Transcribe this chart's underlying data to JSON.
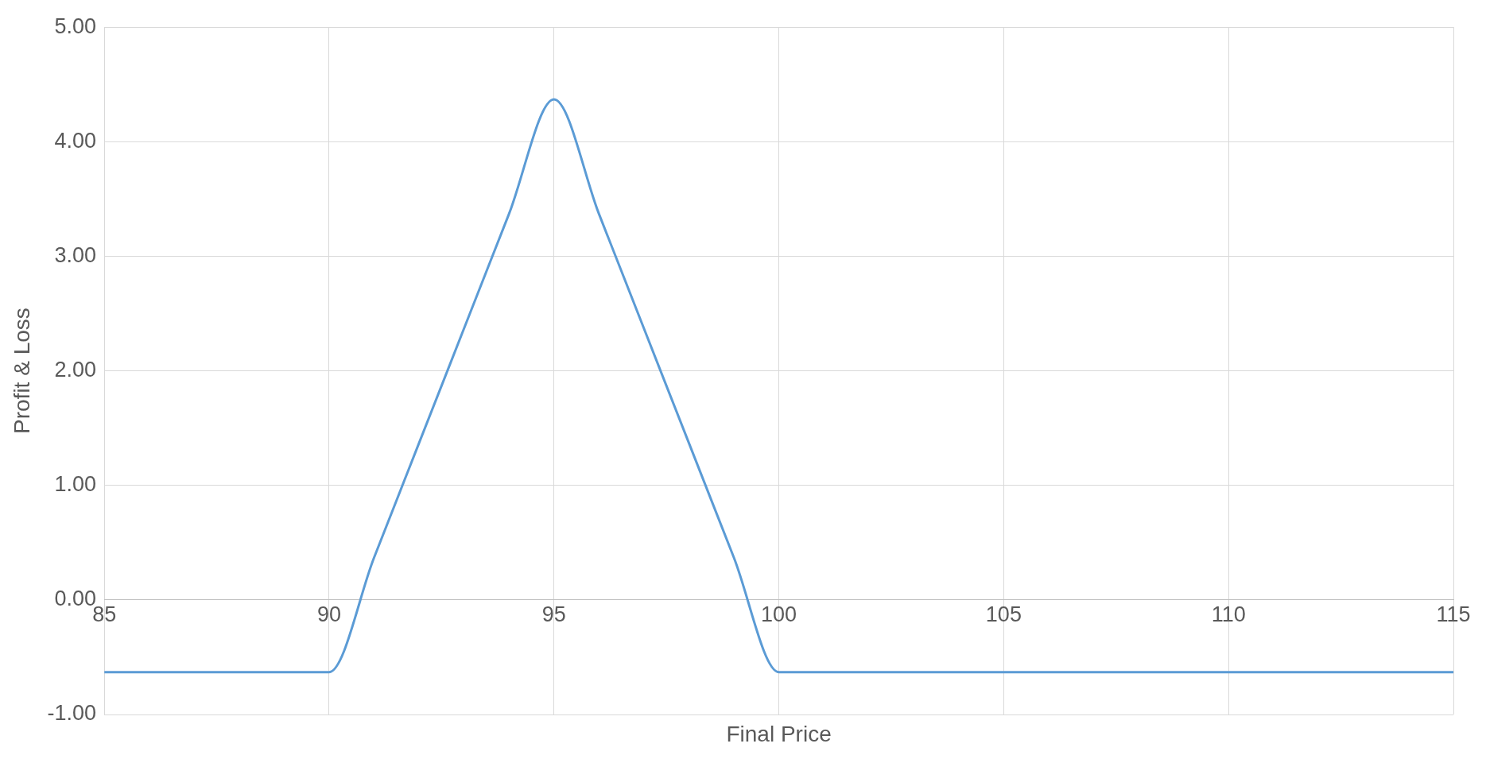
{
  "chart_data": {
    "type": "line",
    "xlabel": "Final Price",
    "ylabel": "Profit & Loss",
    "x": [
      85,
      86,
      87,
      88,
      89,
      90,
      91,
      92,
      93,
      94,
      95,
      96,
      97,
      98,
      99,
      100,
      101,
      102,
      103,
      104,
      105,
      106,
      107,
      108,
      109,
      110,
      111,
      112,
      113,
      114,
      115
    ],
    "series": [
      {
        "color": "#5b9bd5",
        "values": [
          -0.63,
          -0.63,
          -0.63,
          -0.63,
          -0.63,
          -0.63,
          0.37,
          1.37,
          2.37,
          3.37,
          4.37,
          3.37,
          2.37,
          1.37,
          0.37,
          -0.63,
          -0.63,
          -0.63,
          -0.63,
          -0.63,
          -0.63,
          -0.63,
          -0.63,
          -0.63,
          -0.63,
          -0.63,
          -0.63,
          -0.63,
          -0.63,
          -0.63,
          -0.63
        ]
      }
    ],
    "xlim": [
      85,
      115
    ],
    "xticks": [
      85,
      90,
      95,
      100,
      105,
      110,
      115
    ],
    "ylim": [
      -1,
      5
    ],
    "yticks": [
      {
        "value": -1,
        "label": "-1.00"
      },
      {
        "value": 0,
        "label": "0.00"
      },
      {
        "value": 1,
        "label": "1.00"
      },
      {
        "value": 2,
        "label": "2.00"
      },
      {
        "value": 3,
        "label": "3.00"
      },
      {
        "value": 4,
        "label": "4.00"
      },
      {
        "value": 5,
        "label": "5.00"
      }
    ],
    "grid": true,
    "legend": false,
    "marker": "none",
    "line_style": "solid"
  }
}
